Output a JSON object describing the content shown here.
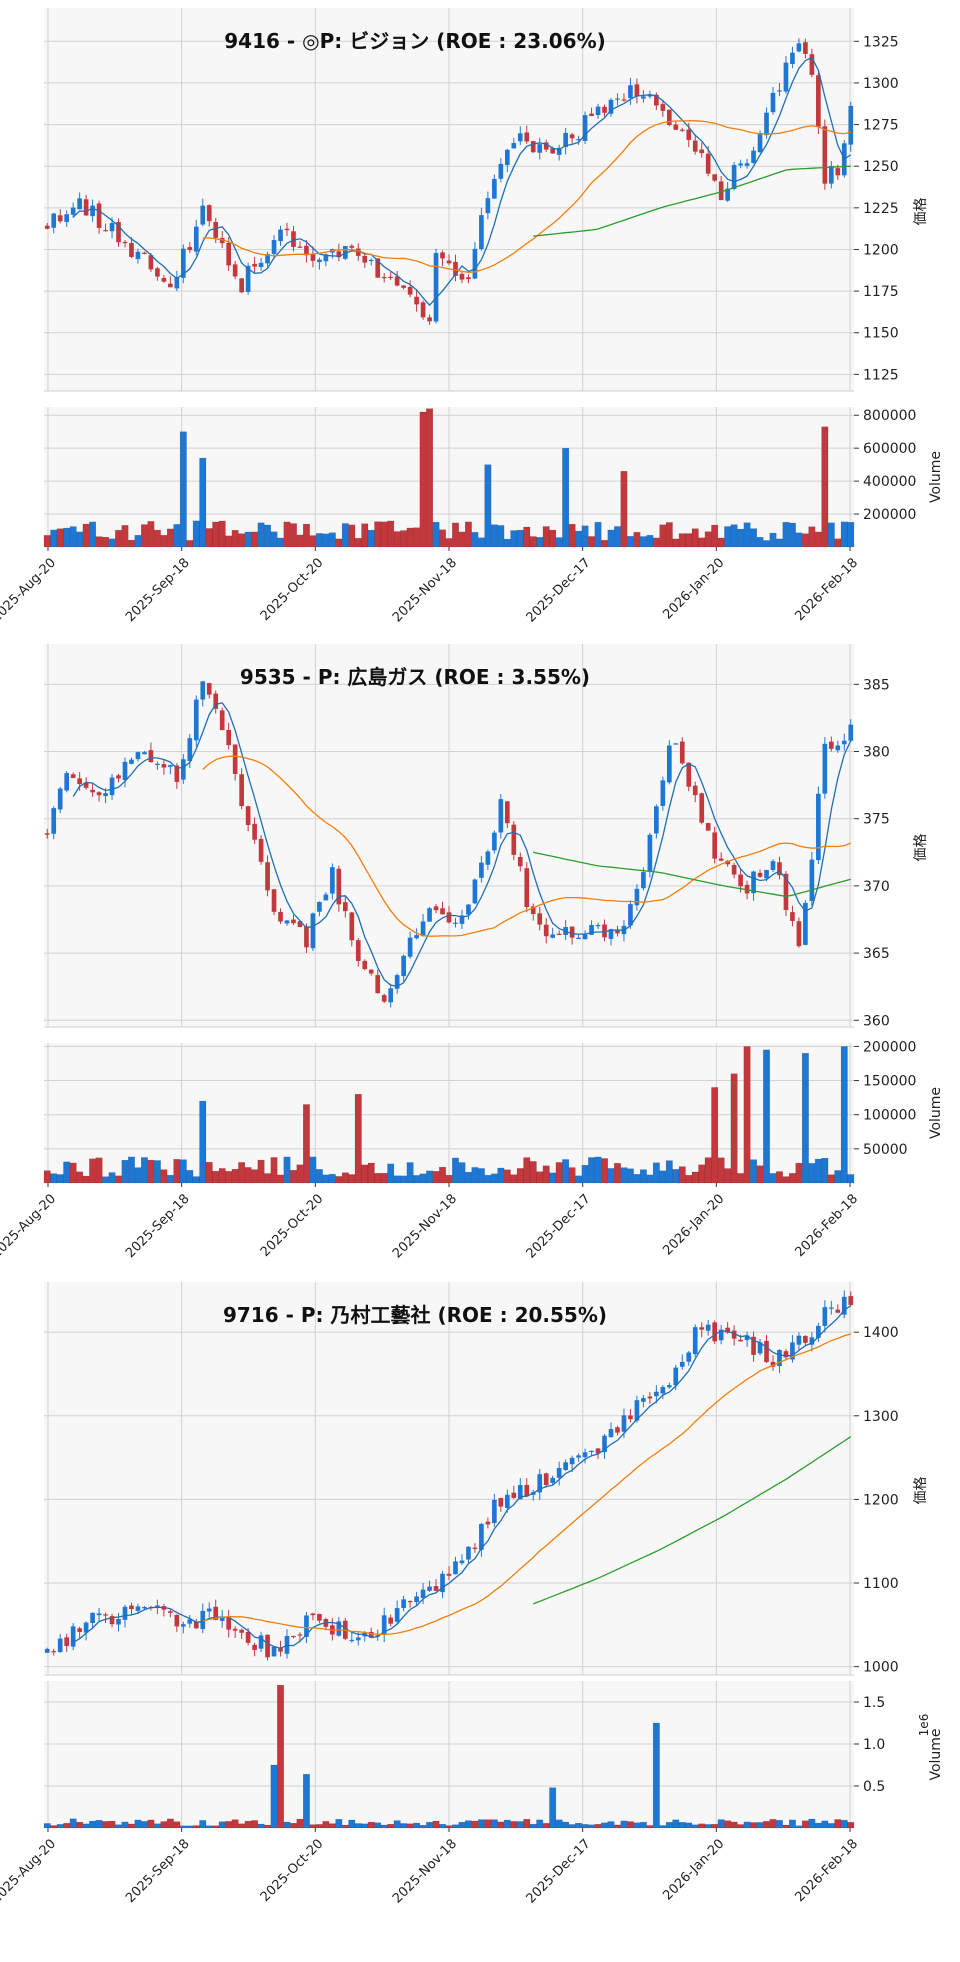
{
  "colors": {
    "up": "#1f77d4",
    "down": "#c2383d",
    "ma_short": "#1f6fb5",
    "ma_mid": "#f07f0e",
    "ma_long": "#2a9d2a",
    "grid": "#d2d2d2",
    "plot_bg": "#f7f7f7"
  },
  "shared": {
    "price_label": "価格",
    "volume_label": "Volume",
    "exponent_label": "1e6",
    "date_ticks": [
      "2025-Aug-20",
      "2025-Sep-18",
      "2025-Oct-20",
      "2025-Nov-18",
      "2025-Dec-17",
      "2026-Jan-20",
      "2026-Feb-18"
    ]
  },
  "chart_data": [
    {
      "type": "candlestick",
      "title": "9416 - ◎P: ビジョン (ROE : 23.06%)",
      "ylabel": "価格",
      "y_ticks": [
        "1125",
        "1150",
        "1175",
        "1200",
        "1225",
        "1250",
        "1275",
        "1300",
        "1325"
      ],
      "ylim": [
        1115,
        1345
      ],
      "volume_ticks": [
        "200000",
        "400000",
        "600000",
        "800000"
      ],
      "volume_lim": [
        0,
        850000
      ],
      "volume_exponent": "",
      "seed": 11,
      "n": 125,
      "anchors": [
        [
          0,
          1215
        ],
        [
          5,
          1228
        ],
        [
          12,
          1205
        ],
        [
          19,
          1175
        ],
        [
          24,
          1225
        ],
        [
          30,
          1180
        ],
        [
          36,
          1212
        ],
        [
          42,
          1195
        ],
        [
          47,
          1205
        ],
        [
          52,
          1182
        ],
        [
          57,
          1165
        ],
        [
          59,
          1155
        ],
        [
          60,
          1195
        ],
        [
          65,
          1185
        ],
        [
          68,
          1230
        ],
        [
          72,
          1265
        ],
        [
          78,
          1260
        ],
        [
          84,
          1278
        ],
        [
          90,
          1298
        ],
        [
          95,
          1280
        ],
        [
          100,
          1260
        ],
        [
          104,
          1235
        ],
        [
          108,
          1255
        ],
        [
          112,
          1290
        ],
        [
          116,
          1325
        ],
        [
          118,
          1305
        ],
        [
          120,
          1240
        ],
        [
          122,
          1250
        ],
        [
          124,
          1288
        ]
      ],
      "ma_long_start": 75,
      "ma_long_values": [
        1208,
        1212,
        1225,
        1235,
        1248,
        1250
      ],
      "volume_spikes": {
        "21": 700000,
        "24": 540000,
        "58": 820000,
        "59": 840000,
        "68": 500000,
        "80": 600000,
        "89": 460000,
        "120": 730000
      }
    },
    {
      "type": "candlestick",
      "title": "9535 - P: 広島ガス (ROE : 3.55%)",
      "ylabel": "価格",
      "y_ticks": [
        "360",
        "365",
        "370",
        "375",
        "380",
        "385"
      ],
      "ylim": [
        359.5,
        388
      ],
      "volume_ticks": [
        "50000",
        "100000",
        "150000",
        "200000"
      ],
      "volume_lim": [
        0,
        205000
      ],
      "volume_exponent": "",
      "seed": 23,
      "n": 125,
      "anchors": [
        [
          0,
          374
        ],
        [
          3,
          378
        ],
        [
          8,
          377
        ],
        [
          14,
          380
        ],
        [
          20,
          378
        ],
        [
          24,
          385
        ],
        [
          27,
          382
        ],
        [
          30,
          376
        ],
        [
          35,
          368
        ],
        [
          40,
          366
        ],
        [
          44,
          371
        ],
        [
          48,
          364
        ],
        [
          52,
          362
        ],
        [
          58,
          368
        ],
        [
          62,
          367
        ],
        [
          66,
          370
        ],
        [
          70,
          376
        ],
        [
          74,
          369
        ],
        [
          78,
          366
        ],
        [
          84,
          367
        ],
        [
          88,
          366
        ],
        [
          92,
          371
        ],
        [
          96,
          381
        ],
        [
          100,
          377
        ],
        [
          103,
          372
        ],
        [
          108,
          370
        ],
        [
          112,
          372
        ],
        [
          116,
          365
        ],
        [
          120,
          380
        ],
        [
          124,
          382
        ]
      ],
      "ma_long_start": 75,
      "ma_long_values": [
        372.5,
        371.5,
        371.0,
        370.0,
        369.2,
        370.5
      ],
      "volume_spikes": {
        "24": 120000,
        "40": 115000,
        "48": 130000,
        "103": 140000,
        "106": 160000,
        "108": 200000,
        "111": 195000,
        "117": 190000,
        "123": 200000
      }
    },
    {
      "type": "candlestick",
      "title": "9716 - P: 乃村工藝社 (ROE : 20.55%)",
      "ylabel": "価格",
      "y_ticks": [
        "1000",
        "1100",
        "1200",
        "1300",
        "1400"
      ],
      "ylim": [
        990,
        1460
      ],
      "volume_ticks": [
        "0.5",
        "1.0",
        "1.5"
      ],
      "volume_lim": [
        0,
        1.75
      ],
      "volume_exponent": "1e6",
      "seed": 37,
      "n": 125,
      "anchors": [
        [
          0,
          1018
        ],
        [
          6,
          1050
        ],
        [
          14,
          1075
        ],
        [
          20,
          1050
        ],
        [
          26,
          1062
        ],
        [
          32,
          1030
        ],
        [
          36,
          1015
        ],
        [
          40,
          1060
        ],
        [
          46,
          1040
        ],
        [
          50,
          1035
        ],
        [
          56,
          1080
        ],
        [
          60,
          1100
        ],
        [
          65,
          1140
        ],
        [
          70,
          1200
        ],
        [
          75,
          1215
        ],
        [
          80,
          1240
        ],
        [
          86,
          1270
        ],
        [
          92,
          1315
        ],
        [
          96,
          1330
        ],
        [
          100,
          1400
        ],
        [
          104,
          1400
        ],
        [
          108,
          1385
        ],
        [
          112,
          1370
        ],
        [
          116,
          1390
        ],
        [
          120,
          1420
        ],
        [
          124,
          1440
        ]
      ],
      "ma_long_start": 75,
      "ma_long_values": [
        1075,
        1105,
        1140,
        1180,
        1225,
        1275
      ],
      "volume_spikes": {
        "35": 750000,
        "36": 1700000,
        "40": 640000,
        "78": 480000,
        "94": 1250000
      }
    }
  ]
}
